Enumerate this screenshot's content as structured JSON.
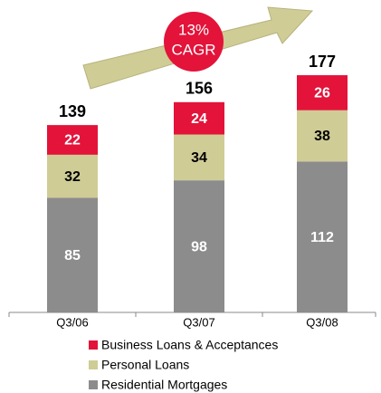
{
  "chart_data": {
    "type": "stacked-bar",
    "categories": [
      "Q3/06",
      "Q3/07",
      "Q3/08"
    ],
    "series": [
      {
        "name": "Residential Mortgages",
        "color": "#8c8c8c",
        "values": [
          85,
          98,
          112
        ]
      },
      {
        "name": "Personal Loans",
        "color": "#cfcc96",
        "values": [
          32,
          34,
          38
        ]
      },
      {
        "name": "Business Loans & Acceptances",
        "color": "#e3133a",
        "values": [
          22,
          24,
          26
        ]
      }
    ],
    "totals": [
      139,
      156,
      177
    ],
    "annotation": {
      "value": "13%",
      "label": "CAGR"
    },
    "ylim": [
      0,
      215
    ],
    "legend": "bottom"
  }
}
